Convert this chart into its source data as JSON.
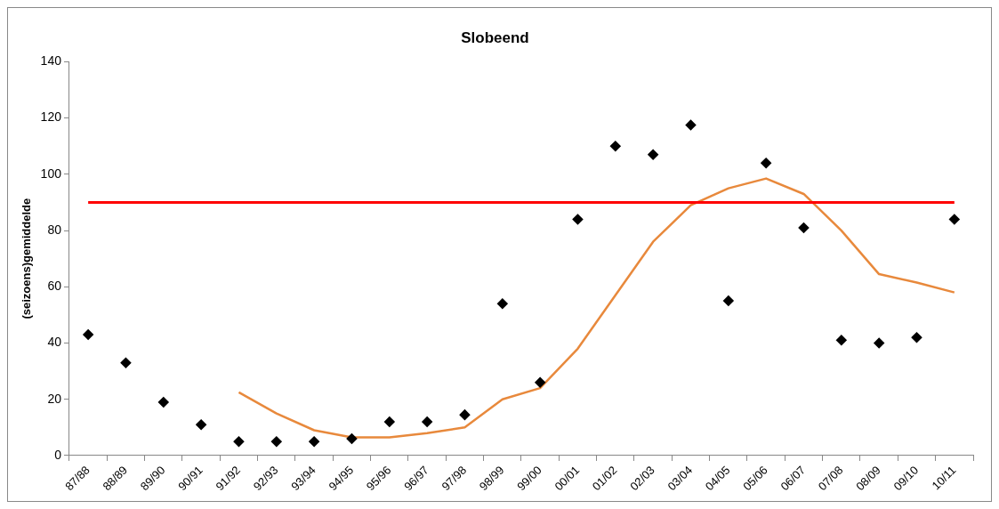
{
  "chart_data": {
    "type": "line",
    "title": "Slobeend",
    "ylabel": "(seizoens)gemiddelde",
    "categories": [
      "87/88",
      "88/89",
      "89/90",
      "90/91",
      "91/92",
      "92/93",
      "93/94",
      "94/95",
      "95/96",
      "96/97",
      "97/98",
      "98/99",
      "99/00",
      "00/01",
      "01/02",
      "02/03",
      "03/04",
      "04/05",
      "05/06",
      "06/07",
      "07/08",
      "08/09",
      "09/10",
      "10/11"
    ],
    "series": [
      {
        "type": "scatter",
        "marker": "diamond",
        "color": "#000000",
        "values": [
          43,
          33,
          19,
          11,
          5,
          5,
          5,
          6,
          12,
          12,
          14.5,
          54,
          26,
          84,
          110,
          107,
          117.5,
          55,
          104,
          81,
          41,
          40,
          42,
          84
        ]
      },
      {
        "marker": "none",
        "color": "#e8893c",
        "values": [
          null,
          null,
          null,
          null,
          22.5,
          15,
          9,
          6.5,
          6.5,
          8,
          10,
          20,
          24,
          38,
          57,
          76,
          89,
          95,
          98.5,
          93,
          80,
          64.5,
          61.5,
          58
        ]
      }
    ],
    "ylim": [
      0,
      140
    ],
    "yticks": [
      0,
      20,
      40,
      60,
      80,
      100,
      120,
      140
    ],
    "grid": false,
    "legend": false,
    "ref_lines": [
      {
        "axis": "y",
        "value": 90,
        "color": "#ff0000"
      }
    ]
  }
}
